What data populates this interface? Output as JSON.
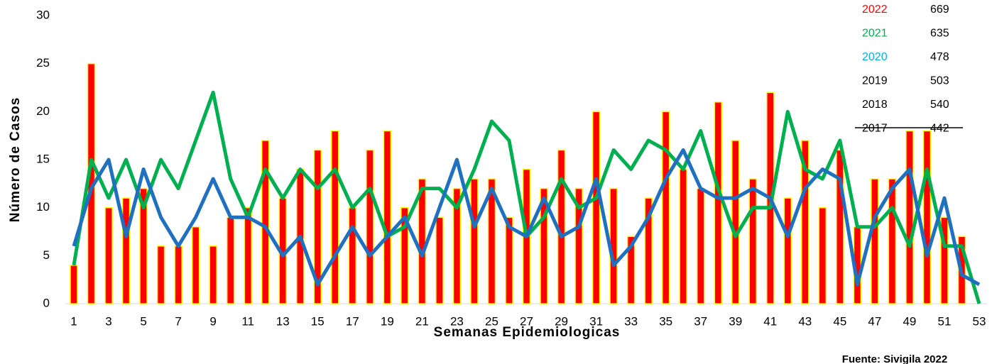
{
  "chart_data": {
    "type": "bar-line",
    "y_label": "Número de Casos",
    "x_label": "Semanas Epidemiologicas",
    "source": "Fuente: Sivigila 2022",
    "categories": [
      "1",
      null,
      "3",
      null,
      "5",
      null,
      "7",
      null,
      "9",
      null,
      "11",
      null,
      "13",
      null,
      "15",
      null,
      "17",
      null,
      "19",
      null,
      "21",
      null,
      "23",
      null,
      "25",
      null,
      "27",
      null,
      "29",
      null,
      "31",
      null,
      "33",
      null,
      "35",
      null,
      "37",
      null,
      "39",
      null,
      "41",
      null,
      "43",
      null,
      "45",
      null,
      "47",
      null,
      "49",
      null,
      "51",
      null,
      "53"
    ],
    "series": [
      {
        "name": "2022",
        "kind": "bar",
        "color": "#ff0000",
        "edge": "#ffff00",
        "values": [
          4,
          25,
          10,
          11,
          12,
          6,
          6,
          8,
          6,
          9,
          10,
          17,
          11,
          14,
          16,
          18,
          10,
          16,
          18,
          10,
          13,
          9,
          12,
          13,
          13,
          9,
          14,
          12,
          16,
          12,
          20,
          12,
          7,
          11,
          20,
          14,
          12,
          21,
          17,
          13,
          22,
          11,
          17,
          10,
          16,
          8,
          13,
          13,
          18,
          18,
          9,
          7,
          0
        ]
      },
      {
        "name": "2021",
        "kind": "line",
        "color": "#00b050",
        "values": [
          4,
          15,
          11,
          15,
          10,
          15,
          12,
          17,
          22,
          13,
          9,
          14,
          11,
          14,
          12,
          14,
          10,
          12,
          7,
          8,
          12,
          12,
          10,
          14,
          19,
          17,
          7,
          9,
          13,
          10,
          11,
          16,
          14,
          17,
          16,
          14,
          18,
          12,
          7,
          10,
          10,
          20,
          14,
          13,
          17,
          8,
          8,
          10,
          6,
          14,
          6,
          6,
          0
        ]
      },
      {
        "name": "2020",
        "kind": "line",
        "color": "#1f70c1",
        "values": [
          6,
          12,
          15,
          7,
          14,
          9,
          6,
          9,
          13,
          9,
          9,
          8,
          5,
          7,
          2,
          5,
          8,
          5,
          7,
          9,
          5,
          10,
          15,
          8,
          12,
          8,
          7,
          11,
          7,
          8,
          13,
          4,
          6,
          9,
          13,
          16,
          12,
          11,
          11,
          12,
          11,
          7,
          12,
          14,
          13,
          2,
          9,
          12,
          14,
          5,
          11,
          3,
          2
        ]
      }
    ],
    "ylim": [
      0,
      30
    ],
    "yticks": [
      0,
      5,
      10,
      15,
      20,
      25,
      30
    ],
    "summary": [
      {
        "year": "2022",
        "total": 669,
        "color": "#ff0000"
      },
      {
        "year": "2021",
        "total": 635,
        "color": "#00b050"
      },
      {
        "year": "2020",
        "total": 478,
        "color": "#00b0f0"
      },
      {
        "year": "2019",
        "total": 503,
        "color": "#000000"
      },
      {
        "year": "2018",
        "total": 540,
        "color": "#000000"
      },
      {
        "year": "2017",
        "total": 442,
        "color": "#000000"
      }
    ]
  }
}
